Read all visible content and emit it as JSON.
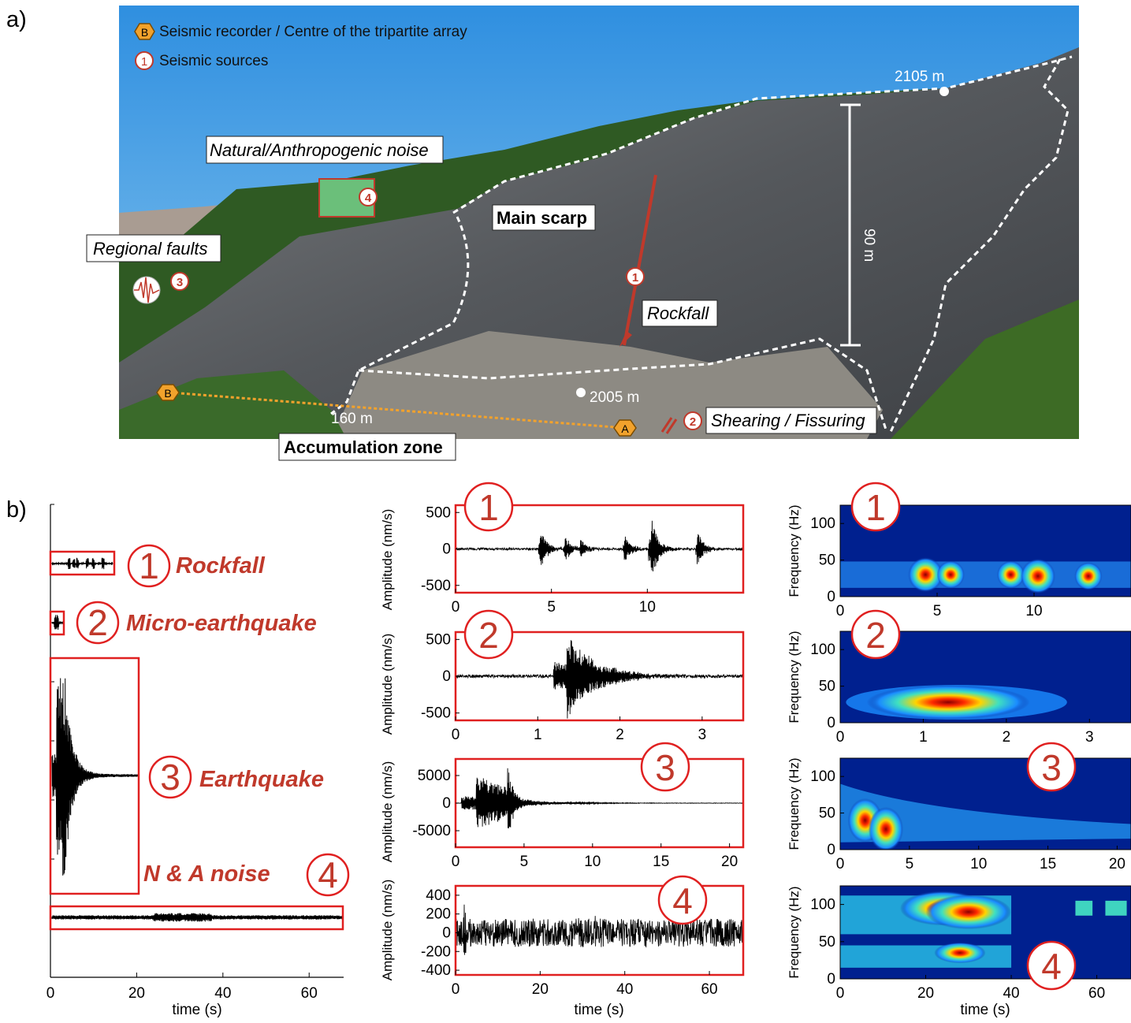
{
  "panel_a": {
    "label": "a)",
    "legend": {
      "recorder_symbol": "B",
      "recorder_text": "Seismic recorder / Centre of the tripartite array",
      "source_symbol": "1",
      "source_text": "Seismic sources"
    },
    "annotations": {
      "noise": "Natural/Anthropogenic noise",
      "faults": "Regional faults",
      "main_scarp": "Main scarp",
      "rockfall": "Rockfall",
      "shearing": "Shearing / Fissuring",
      "accumulation": "Accumulation zone",
      "elev_top": "2105 m",
      "elev_bottom": "2005 m",
      "height": "90 m",
      "distance": "160 m",
      "marker_a": "A",
      "marker_b": "B",
      "n1": "1",
      "n2": "2",
      "n3": "3",
      "n4": "4"
    },
    "colors": {
      "sky": "#4aa3e4",
      "rock": "#5d6166",
      "forest": "#2f5a23",
      "marker": "#f2a22c",
      "source": "#c0392b"
    }
  },
  "panel_b": {
    "label": "b)",
    "categories": [
      {
        "num": "1",
        "name": "Rockfall"
      },
      {
        "num": "2",
        "name": "Micro-earthquake"
      },
      {
        "num": "3",
        "name": "Earthquake"
      },
      {
        "num": "4",
        "name": "N & A noise"
      }
    ],
    "overview_axis": {
      "xlabel": "time (s)",
      "ticks": [
        "0",
        "20",
        "40",
        "60"
      ]
    },
    "waveform_ylabel": "Amplitude (nm/s)",
    "spectrogram_ylabel": "Frequency (Hz)",
    "xlabel": "time (s)"
  },
  "chart_data": [
    {
      "type": "line",
      "title": "1",
      "xlabel": "",
      "ylabel": "Amplitude (nm/s)",
      "xlim": [
        0,
        15
      ],
      "ylim": [
        -600,
        600
      ],
      "x_ticks": [
        "0",
        "5",
        "10"
      ],
      "y_ticks": [
        "500",
        "0",
        "-500"
      ],
      "series": [
        {
          "events": [
            {
              "t": 4.4,
              "amp": 310
            },
            {
              "t": 5.7,
              "amp": 180
            },
            {
              "t": 6.5,
              "amp": 120
            },
            {
              "t": 8.8,
              "amp": 200
            },
            {
              "t": 10.2,
              "amp": 520
            },
            {
              "t": 12.6,
              "amp": 260
            }
          ],
          "noise": 15
        }
      ]
    },
    {
      "type": "line",
      "title": "2",
      "xlabel": "",
      "ylabel": "Amplitude (nm/s)",
      "xlim": [
        0,
        3.5
      ],
      "ylim": [
        -600,
        600
      ],
      "x_ticks": [
        "0",
        "1",
        "2",
        "3"
      ],
      "y_ticks": [
        "500",
        "0",
        "-500"
      ],
      "series": [
        {
          "events": [
            {
              "t": 1.35,
              "amp": 600
            }
          ],
          "noise": 20
        }
      ]
    },
    {
      "type": "line",
      "title": "3",
      "xlabel": "",
      "ylabel": "Amplitude (nm/s)",
      "xlim": [
        0,
        21
      ],
      "ylim": [
        -8000,
        8000
      ],
      "x_ticks": [
        "0",
        "5",
        "10",
        "15",
        "20"
      ],
      "y_ticks": [
        "5000",
        "0",
        "-5000"
      ],
      "series": [
        {
          "events": [
            {
              "t": 1.5,
              "amp": 4000
            },
            {
              "t": 3.8,
              "amp": 7500
            }
          ],
          "noise": 40
        }
      ]
    },
    {
      "type": "line",
      "title": "4",
      "xlabel": "time (s)",
      "ylabel": "Amplitude (nm/s)",
      "xlim": [
        0,
        68
      ],
      "ylim": [
        -450,
        500
      ],
      "x_ticks": [
        "0",
        "20",
        "40",
        "60"
      ],
      "y_ticks": [
        "400",
        "200",
        "0",
        "-200",
        "-400"
      ],
      "series": [
        {
          "events": [
            {
              "t": 2,
              "amp": 420
            },
            {
              "t": 28,
              "amp": 380
            },
            {
              "t": 33,
              "amp": 300
            }
          ],
          "noise": 150
        }
      ]
    },
    {
      "type": "heatmap",
      "title": "1",
      "xlabel": "",
      "ylabel": "Frequency (Hz)",
      "xlim": [
        0,
        15
      ],
      "ylim": [
        0,
        125
      ],
      "x_ticks": [
        "0",
        "5",
        "10"
      ],
      "y_ticks": [
        "100",
        "50",
        "0"
      ],
      "blobs": [
        {
          "t": 4.4,
          "f": 30,
          "s": 1
        },
        {
          "t": 5.7,
          "f": 30,
          "s": 0.8
        },
        {
          "t": 8.8,
          "f": 30,
          "s": 0.8
        },
        {
          "t": 10.2,
          "f": 28,
          "s": 1
        },
        {
          "t": 12.8,
          "f": 28,
          "s": 0.8
        }
      ]
    },
    {
      "type": "heatmap",
      "title": "2",
      "xlabel": "",
      "ylabel": "Frequency (Hz)",
      "xlim": [
        0,
        3.5
      ],
      "ylim": [
        0,
        125
      ],
      "x_ticks": [
        "0",
        "1",
        "2",
        "3"
      ],
      "y_ticks": [
        "100",
        "50",
        "0"
      ],
      "blobs": [
        {
          "t": 1.3,
          "f": 28,
          "s": 1
        }
      ]
    },
    {
      "type": "heatmap",
      "title": "3",
      "xlabel": "",
      "ylabel": "Frequency (Hz)",
      "xlim": [
        0,
        21
      ],
      "ylim": [
        0,
        125
      ],
      "x_ticks": [
        "0",
        "5",
        "10",
        "15",
        "20"
      ],
      "y_ticks": [
        "100",
        "50",
        "0"
      ],
      "blobs": [
        {
          "t": 1.8,
          "f": 40,
          "s": 1
        },
        {
          "t": 3.3,
          "f": 28,
          "s": 1
        }
      ]
    },
    {
      "type": "heatmap",
      "title": "4",
      "xlabel": "time (s)",
      "ylabel": "Frequency (Hz)",
      "xlim": [
        0,
        68
      ],
      "ylim": [
        0,
        125
      ],
      "x_ticks": [
        "0",
        "20",
        "40",
        "60"
      ],
      "y_ticks": [
        "100",
        "50",
        "0"
      ],
      "blobs": [
        {
          "t": 24,
          "f": 95,
          "s": 1
        },
        {
          "t": 30,
          "f": 90,
          "s": 1
        },
        {
          "t": 28,
          "f": 35,
          "s": 0.6
        }
      ]
    }
  ]
}
